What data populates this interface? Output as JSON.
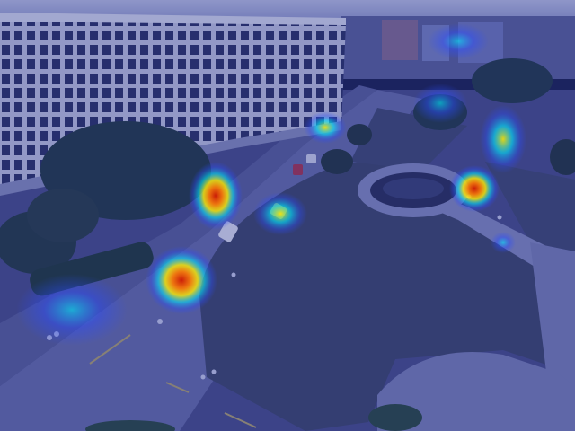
{
  "scene": {
    "palette": {
      "sky": "#b8bfe0",
      "overlay": "#1e2a8c",
      "building": "#cfd2e6",
      "windows": "#2c3160",
      "lawn": "#3f4766",
      "road": "#6a70a8",
      "trees": "#233a3f",
      "heat_low": "#2b4cff",
      "heat_mid": "#00e8ff",
      "heat_high": "#ffee00",
      "heat_peak": "#d21a00"
    },
    "heatmap_levels": [
      {
        "region": "car-on-road",
        "level": 1.0
      },
      {
        "region": "left-road-walkway",
        "level": 0.9
      },
      {
        "region": "fountain-right-path",
        "level": 0.85
      },
      {
        "region": "right-path-upper",
        "level": 0.55
      },
      {
        "region": "far-left-road",
        "level": 0.4
      },
      {
        "region": "road-center-car",
        "level": 0.5
      },
      {
        "region": "building-corner",
        "level": 0.45
      },
      {
        "region": "distant-right",
        "level": 0.3
      }
    ]
  }
}
